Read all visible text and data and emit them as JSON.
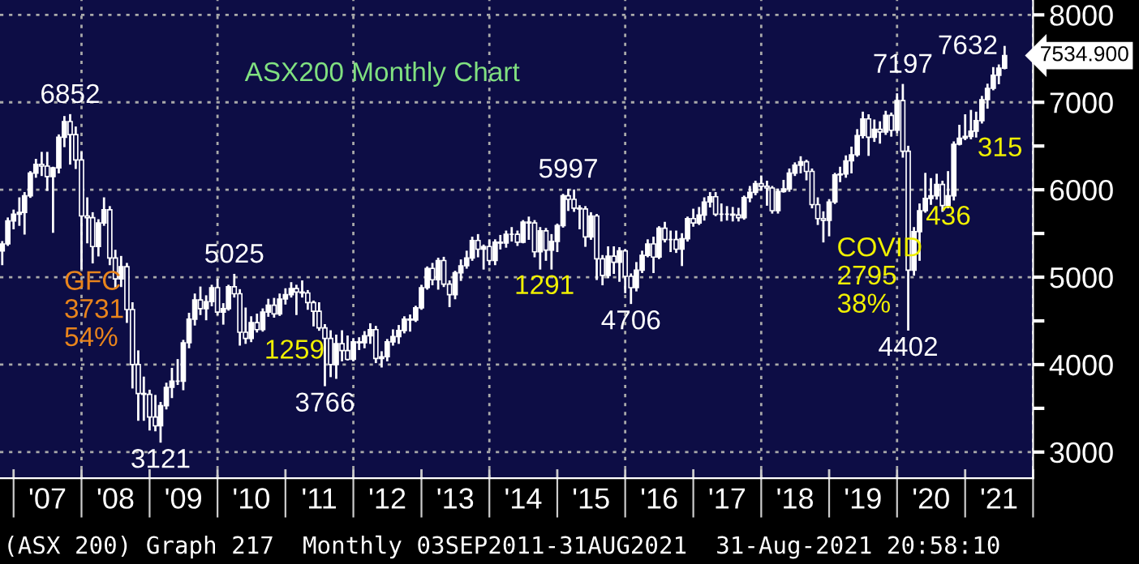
{
  "chart_data": {
    "type": "candlestick",
    "title": "ASX200 Monthly Chart",
    "x": [
      "2006-11",
      "2006-12",
      "2007-01",
      "2007-02",
      "2007-03",
      "2007-04",
      "2007-05",
      "2007-06",
      "2007-07",
      "2007-08",
      "2007-09",
      "2007-10",
      "2007-11",
      "2007-12",
      "2008-01",
      "2008-02",
      "2008-03",
      "2008-04",
      "2008-05",
      "2008-06",
      "2008-07",
      "2008-08",
      "2008-09",
      "2008-10",
      "2008-11",
      "2008-12",
      "2009-01",
      "2009-02",
      "2009-03",
      "2009-04",
      "2009-05",
      "2009-06",
      "2009-07",
      "2009-08",
      "2009-09",
      "2009-10",
      "2009-11",
      "2009-12",
      "2010-01",
      "2010-02",
      "2010-03",
      "2010-04",
      "2010-05",
      "2010-06",
      "2010-07",
      "2010-08",
      "2010-09",
      "2010-10",
      "2010-11",
      "2010-12",
      "2011-01",
      "2011-02",
      "2011-03",
      "2011-04",
      "2011-05",
      "2011-06",
      "2011-07",
      "2011-08",
      "2011-09",
      "2011-10",
      "2011-11",
      "2011-12",
      "2012-01",
      "2012-02",
      "2012-03",
      "2012-04",
      "2012-05",
      "2012-06",
      "2012-07",
      "2012-08",
      "2012-09",
      "2012-10",
      "2012-11",
      "2012-12",
      "2013-01",
      "2013-02",
      "2013-03",
      "2013-04",
      "2013-05",
      "2013-06",
      "2013-07",
      "2013-08",
      "2013-09",
      "2013-10",
      "2013-11",
      "2013-12",
      "2014-01",
      "2014-02",
      "2014-03",
      "2014-04",
      "2014-05",
      "2014-06",
      "2014-07",
      "2014-08",
      "2014-09",
      "2014-10",
      "2014-11",
      "2014-12",
      "2015-01",
      "2015-02",
      "2015-03",
      "2015-04",
      "2015-05",
      "2015-06",
      "2015-07",
      "2015-08",
      "2015-09",
      "2015-10",
      "2015-11",
      "2015-12",
      "2016-01",
      "2016-02",
      "2016-03",
      "2016-04",
      "2016-05",
      "2016-06",
      "2016-07",
      "2016-08",
      "2016-09",
      "2016-10",
      "2016-11",
      "2016-12",
      "2017-01",
      "2017-02",
      "2017-03",
      "2017-04",
      "2017-05",
      "2017-06",
      "2017-07",
      "2017-08",
      "2017-09",
      "2017-10",
      "2017-11",
      "2017-12",
      "2018-01",
      "2018-02",
      "2018-03",
      "2018-04",
      "2018-05",
      "2018-06",
      "2018-07",
      "2018-08",
      "2018-09",
      "2018-10",
      "2018-11",
      "2018-12",
      "2019-01",
      "2019-02",
      "2019-03",
      "2019-04",
      "2019-05",
      "2019-06",
      "2019-07",
      "2019-08",
      "2019-09",
      "2019-10",
      "2019-11",
      "2019-12",
      "2020-01",
      "2020-02",
      "2020-03",
      "2020-04",
      "2020-05",
      "2020-06",
      "2020-07",
      "2020-08",
      "2020-09",
      "2020-10",
      "2020-11",
      "2020-12",
      "2021-01",
      "2021-02",
      "2021-03",
      "2021-04",
      "2021-05",
      "2021-06",
      "2021-07",
      "2021-08"
    ],
    "ohlc": [
      [
        5300,
        5400,
        5150,
        5380
      ],
      [
        5380,
        5670,
        5370,
        5644
      ],
      [
        5644,
        5760,
        5560,
        5720
      ],
      [
        5720,
        5900,
        5600,
        5740
      ],
      [
        5740,
        5960,
        5500,
        5930
      ],
      [
        5930,
        6200,
        5920,
        6190
      ],
      [
        6190,
        6340,
        6150,
        6290
      ],
      [
        6290,
        6420,
        6170,
        6270
      ],
      [
        6270,
        6420,
        6000,
        6150
      ],
      [
        6150,
        6250,
        5520,
        6250
      ],
      [
        6250,
        6620,
        6200,
        6600
      ],
      [
        6600,
        6830,
        6500,
        6780
      ],
      [
        6780,
        6852,
        6300,
        6630
      ],
      [
        6630,
        6710,
        6250,
        6340
      ],
      [
        6340,
        6420,
        5100,
        5700
      ],
      [
        5700,
        5900,
        5400,
        5680
      ],
      [
        5680,
        5730,
        5170,
        5350
      ],
      [
        5350,
        5650,
        5250,
        5620
      ],
      [
        5620,
        5900,
        5600,
        5770
      ],
      [
        5770,
        5800,
        5150,
        5220
      ],
      [
        5220,
        5300,
        4880,
        4980
      ],
      [
        4980,
        5230,
        4900,
        5120
      ],
      [
        5120,
        5150,
        4490,
        4630
      ],
      [
        4630,
        4700,
        3740,
        4000
      ],
      [
        4000,
        4150,
        3370,
        3670
      ],
      [
        3670,
        3850,
        3370,
        3660
      ],
      [
        3660,
        3700,
        3260,
        3400
      ],
      [
        3400,
        3640,
        3250,
        3300
      ],
      [
        3300,
        3560,
        3121,
        3530
      ],
      [
        3530,
        3780,
        3500,
        3740
      ],
      [
        3740,
        3950,
        3630,
        3810
      ],
      [
        3810,
        4050,
        3780,
        3810
      ],
      [
        3810,
        4270,
        3720,
        4250
      ],
      [
        4250,
        4580,
        4200,
        4520
      ],
      [
        4520,
        4800,
        4460,
        4740
      ],
      [
        4740,
        4880,
        4580,
        4640
      ],
      [
        4640,
        4780,
        4520,
        4720
      ],
      [
        4720,
        4900,
        4680,
        4880
      ],
      [
        4880,
        4970,
        4580,
        4600
      ],
      [
        4600,
        4690,
        4470,
        4640
      ],
      [
        4640,
        4900,
        4630,
        4890
      ],
      [
        4890,
        5025,
        4780,
        4810
      ],
      [
        4810,
        4850,
        4230,
        4370
      ],
      [
        4370,
        4640,
        4250,
        4300
      ],
      [
        4300,
        4540,
        4270,
        4480
      ],
      [
        4480,
        4570,
        4380,
        4400
      ],
      [
        4400,
        4630,
        4390,
        4600
      ],
      [
        4600,
        4740,
        4560,
        4680
      ],
      [
        4680,
        4750,
        4550,
        4580
      ],
      [
        4580,
        4800,
        4570,
        4750
      ],
      [
        4750,
        4860,
        4700,
        4800
      ],
      [
        4800,
        4930,
        4780,
        4870
      ],
      [
        4870,
        4900,
        4580,
        4830
      ],
      [
        4830,
        4950,
        4780,
        4820
      ],
      [
        4820,
        4840,
        4640,
        4710
      ],
      [
        4710,
        4720,
        4450,
        4610
      ],
      [
        4610,
        4700,
        4400,
        4420
      ],
      [
        4420,
        4450,
        3766,
        4300
      ],
      [
        4300,
        4380,
        3870,
        4000
      ],
      [
        4000,
        4330,
        3850,
        4240
      ],
      [
        4240,
        4380,
        4050,
        4160
      ],
      [
        4160,
        4320,
        4060,
        4060
      ],
      [
        4060,
        4290,
        4050,
        4260
      ],
      [
        4260,
        4300,
        4180,
        4250
      ],
      [
        4250,
        4370,
        4200,
        4330
      ],
      [
        4330,
        4460,
        4250,
        4400
      ],
      [
        4400,
        4430,
        4030,
        4070
      ],
      [
        4070,
        4140,
        3980,
        4090
      ],
      [
        4090,
        4280,
        4050,
        4260
      ],
      [
        4260,
        4390,
        4230,
        4320
      ],
      [
        4320,
        4440,
        4250,
        4390
      ],
      [
        4390,
        4540,
        4370,
        4520
      ],
      [
        4520,
        4560,
        4390,
        4510
      ],
      [
        4510,
        4660,
        4500,
        4650
      ],
      [
        4650,
        4900,
        4640,
        4880
      ],
      [
        4880,
        5110,
        4870,
        5100
      ],
      [
        5100,
        5150,
        4920,
        4970
      ],
      [
        4970,
        5210,
        4870,
        5190
      ],
      [
        5190,
        5220,
        4900,
        4920
      ],
      [
        4920,
        4950,
        4670,
        4800
      ],
      [
        4800,
        5060,
        4760,
        5050
      ],
      [
        5050,
        5190,
        4970,
        5130
      ],
      [
        5130,
        5290,
        5110,
        5220
      ],
      [
        5220,
        5450,
        5200,
        5420
      ],
      [
        5420,
        5480,
        5240,
        5320
      ],
      [
        5320,
        5360,
        5100,
        5350
      ],
      [
        5350,
        5420,
        5150,
        5190
      ],
      [
        5190,
        5420,
        5150,
        5400
      ],
      [
        5400,
        5470,
        5330,
        5390
      ],
      [
        5390,
        5520,
        5350,
        5490
      ],
      [
        5490,
        5560,
        5420,
        5490
      ],
      [
        5490,
        5520,
        5370,
        5400
      ],
      [
        5400,
        5640,
        5400,
        5630
      ],
      [
        5630,
        5680,
        5440,
        5620
      ],
      [
        5620,
        5640,
        5240,
        5290
      ],
      [
        5290,
        5560,
        5100,
        5530
      ],
      [
        5530,
        5550,
        5200,
        5310
      ],
      [
        5310,
        5480,
        5100,
        5410
      ],
      [
        5410,
        5600,
        5300,
        5590
      ],
      [
        5590,
        5940,
        5580,
        5930
      ],
      [
        5930,
        5997,
        5770,
        5890
      ],
      [
        5890,
        5990,
        5760,
        5790
      ],
      [
        5790,
        5810,
        5560,
        5780
      ],
      [
        5780,
        5800,
        5360,
        5460
      ],
      [
        5460,
        5730,
        5440,
        5700
      ],
      [
        5700,
        5710,
        4980,
        5210
      ],
      [
        5210,
        5240,
        4920,
        5020
      ],
      [
        5020,
        5340,
        5000,
        5240
      ],
      [
        5240,
        5340,
        5050,
        5170
      ],
      [
        5170,
        5330,
        4960,
        5300
      ],
      [
        5300,
        5310,
        4830,
        5010
      ],
      [
        5010,
        5030,
        4706,
        4880
      ],
      [
        4880,
        5160,
        4850,
        5080
      ],
      [
        5080,
        5290,
        5060,
        5250
      ],
      [
        5250,
        5420,
        5240,
        5380
      ],
      [
        5380,
        5450,
        5060,
        5230
      ],
      [
        5230,
        5570,
        5220,
        5560
      ],
      [
        5560,
        5620,
        5410,
        5430
      ],
      [
        5430,
        5520,
        5300,
        5430
      ],
      [
        5430,
        5520,
        5290,
        5320
      ],
      [
        5320,
        5490,
        5140,
        5440
      ],
      [
        5440,
        5680,
        5420,
        5670
      ],
      [
        5670,
        5770,
        5590,
        5620
      ],
      [
        5620,
        5790,
        5610,
        5710
      ],
      [
        5710,
        5900,
        5660,
        5860
      ],
      [
        5860,
        5960,
        5810,
        5920
      ],
      [
        5920,
        5960,
        5710,
        5720
      ],
      [
        5720,
        5830,
        5650,
        5720
      ],
      [
        5720,
        5800,
        5660,
        5720
      ],
      [
        5720,
        5790,
        5650,
        5710
      ],
      [
        5710,
        5780,
        5650,
        5680
      ],
      [
        5680,
        5920,
        5670,
        5910
      ],
      [
        5910,
        6030,
        5870,
        5970
      ],
      [
        5970,
        6090,
        5950,
        6070
      ],
      [
        6070,
        6150,
        6000,
        6040
      ],
      [
        6040,
        6090,
        5830,
        6020
      ],
      [
        6020,
        6030,
        5740,
        5760
      ],
      [
        5760,
        6000,
        5740,
        5980
      ],
      [
        5980,
        6100,
        5980,
        6010
      ],
      [
        6010,
        6230,
        5990,
        6190
      ],
      [
        6190,
        6300,
        6170,
        6280
      ],
      [
        6280,
        6370,
        6200,
        6320
      ],
      [
        6320,
        6330,
        6120,
        6210
      ],
      [
        6210,
        6230,
        5800,
        5830
      ],
      [
        5830,
        5900,
        5610,
        5670
      ],
      [
        5670,
        5740,
        5410,
        5650
      ],
      [
        5650,
        5880,
        5480,
        5860
      ],
      [
        5860,
        6180,
        5850,
        6170
      ],
      [
        6170,
        6250,
        6100,
        6180
      ],
      [
        6180,
        6380,
        6150,
        6330
      ],
      [
        6330,
        6480,
        6200,
        6400
      ],
      [
        6400,
        6680,
        6390,
        6620
      ],
      [
        6620,
        6880,
        6600,
        6810
      ],
      [
        6810,
        6850,
        6400,
        6600
      ],
      [
        6600,
        6790,
        6560,
        6690
      ],
      [
        6690,
        6770,
        6540,
        6660
      ],
      [
        6660,
        6890,
        6640,
        6850
      ],
      [
        6850,
        6870,
        6620,
        6680
      ],
      [
        6680,
        7090,
        6660,
        7020
      ],
      [
        7020,
        7197,
        6380,
        6440
      ],
      [
        6440,
        6490,
        4402,
        5080
      ],
      [
        5080,
        5560,
        5030,
        5520
      ],
      [
        5520,
        5830,
        5200,
        5760
      ],
      [
        5760,
        6180,
        5750,
        5900
      ],
      [
        5900,
        6120,
        5840,
        5930
      ],
      [
        5930,
        6170,
        5900,
        6060
      ],
      [
        6060,
        6090,
        5760,
        5820
      ],
      [
        5820,
        6200,
        5800,
        5930
      ],
      [
        5930,
        6540,
        5890,
        6520
      ],
      [
        6520,
        6730,
        6520,
        6590
      ],
      [
        6590,
        6850,
        6580,
        6610
      ],
      [
        6610,
        6900,
        6590,
        6670
      ],
      [
        6670,
        6880,
        6610,
        6790
      ],
      [
        6790,
        7060,
        6770,
        7030
      ],
      [
        7030,
        7200,
        6940,
        7160
      ],
      [
        7160,
        7390,
        7150,
        7310
      ],
      [
        7310,
        7420,
        7220,
        7390
      ],
      [
        7390,
        7632,
        7390,
        7534.9
      ]
    ],
    "color": "#ffffff",
    "xlim": [
      "2006-10-20",
      "2022-01-01"
    ],
    "xticks": [
      {
        "value": "2007-01-01",
        "label": null
      },
      {
        "value": "2007-07-02",
        "label": "'07"
      },
      {
        "value": "2008-01-01",
        "label": null
      },
      {
        "value": "2008-07-02",
        "label": "'08"
      },
      {
        "value": "2009-01-01",
        "label": null
      },
      {
        "value": "2009-07-02",
        "label": "'09"
      },
      {
        "value": "2010-01-01",
        "label": null
      },
      {
        "value": "2010-07-02",
        "label": "'10"
      },
      {
        "value": "2011-01-01",
        "label": null
      },
      {
        "value": "2011-07-02",
        "label": "'11"
      },
      {
        "value": "2012-01-01",
        "label": null
      },
      {
        "value": "2012-07-02",
        "label": "'12"
      },
      {
        "value": "2013-01-01",
        "label": null
      },
      {
        "value": "2013-07-02",
        "label": "'13"
      },
      {
        "value": "2014-01-01",
        "label": null
      },
      {
        "value": "2014-07-02",
        "label": "'14"
      },
      {
        "value": "2015-01-01",
        "label": null
      },
      {
        "value": "2015-07-02",
        "label": "'15"
      },
      {
        "value": "2016-01-01",
        "label": null
      },
      {
        "value": "2016-07-02",
        "label": "'16"
      },
      {
        "value": "2017-01-01",
        "label": null
      },
      {
        "value": "2017-07-02",
        "label": "'17"
      },
      {
        "value": "2018-01-01",
        "label": null
      },
      {
        "value": "2018-07-02",
        "label": "'18"
      },
      {
        "value": "2019-01-01",
        "label": null
      },
      {
        "value": "2019-07-02",
        "label": "'19"
      },
      {
        "value": "2020-01-01",
        "label": null
      },
      {
        "value": "2020-07-02",
        "label": "'20"
      },
      {
        "value": "2021-01-01",
        "label": null
      },
      {
        "value": "2021-07-02",
        "label": "'21"
      },
      {
        "value": "2022-01-01",
        "label": null
      }
    ],
    "ylim": [
      2700,
      8170
    ],
    "yticks": [
      3000,
      {
        "value": 3500,
        "label": null
      },
      4000,
      {
        "value": 4500,
        "label": null
      },
      5000,
      {
        "value": 5500,
        "label": null
      },
      6000,
      {
        "value": 6500,
        "label": null
      },
      7000,
      {
        "value": 7500,
        "label": null
      },
      8000
    ],
    "grid": true,
    "annotations": [
      {
        "text": "7534.900",
        "x": "2021-08",
        "y": 7534.9
      },
      {
        "text": "6852",
        "x": "2007-11",
        "y": 6852
      },
      {
        "text": "3121",
        "x": "2009-03",
        "y": 3121
      },
      {
        "text": "5025",
        "x": "2010-04",
        "y": 5025
      },
      {
        "text": "3766",
        "x": "2011-08",
        "y": 3766
      },
      {
        "text": "5997",
        "x": "2015-03",
        "y": 5997
      },
      {
        "text": "4706",
        "x": "2016-02",
        "y": 4706
      },
      {
        "text": "7197",
        "x": "2020-02",
        "y": 7197
      },
      {
        "text": "4402",
        "x": "2020-03",
        "y": 4402
      },
      {
        "text": "7632",
        "x": "2021-08",
        "y": 7632
      },
      "GFC\n3731\n54%",
      "1259",
      "1291",
      "COVID\n2795\n38%",
      "436",
      "315",
      "(ASX 200) Graph 217  Monthly 03SEP2011-31AUG2021  31-Aug-2021 20:58:10"
    ]
  }
}
